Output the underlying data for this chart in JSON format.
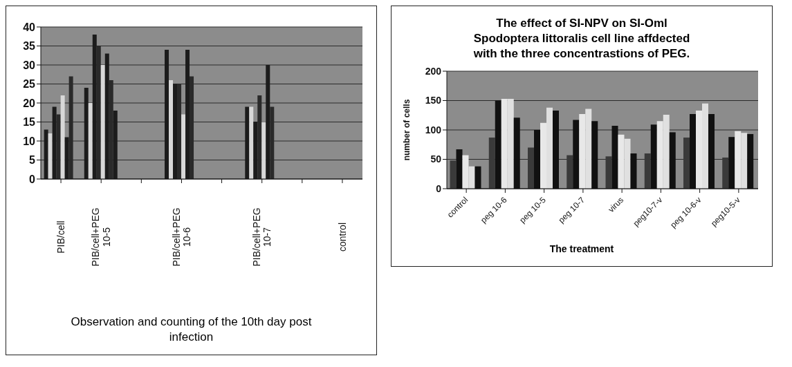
{
  "chart_data": [
    {
      "type": "bar",
      "xlabel": "Observation and counting of the 10th day post infection",
      "categories": [
        "PIB/cell",
        "PIB/cell+PEG 10-5",
        null,
        "PIB/cell+PEG 10-6",
        null,
        "PIB/cell+PEG 10-7",
        null,
        "control"
      ],
      "series": [
        {
          "color": "#1c1c1c",
          "values": [
            13,
            24,
            null,
            34,
            null,
            19,
            null,
            null
          ]
        },
        {
          "color": "#d8d8d8",
          "values": [
            12,
            20,
            null,
            26,
            null,
            19,
            null,
            null
          ]
        },
        {
          "color": "#1c1c1c",
          "values": [
            19,
            38,
            null,
            25,
            null,
            15,
            null,
            null
          ]
        },
        {
          "color": "#2a2a2a",
          "values": [
            17,
            35,
            null,
            25,
            null,
            22,
            null,
            null
          ]
        },
        {
          "color": "#d8d8d8",
          "values": [
            22,
            30,
            null,
            17,
            null,
            15,
            null,
            null
          ]
        },
        {
          "color": "#1c1c1c",
          "values": [
            11,
            33,
            null,
            34,
            null,
            30,
            null,
            null
          ]
        },
        {
          "color": "#2a2a2a",
          "values": [
            27,
            26,
            null,
            27,
            null,
            19,
            null,
            null
          ]
        },
        {
          "color": "#1c1c1c",
          "values": [
            null,
            18,
            null,
            null,
            null,
            null,
            null,
            null
          ]
        }
      ],
      "ylim": [
        0,
        40
      ],
      "yticks": [
        0,
        5,
        10,
        15,
        20,
        25,
        30,
        35,
        40
      ],
      "grid": "y"
    },
    {
      "type": "bar",
      "title": "The effect of SI-NPV on SI-Oml Spodoptera littoralis cell line affdected with the three concentrastions of PEG.",
      "xlabel": "The treatment",
      "ylabel": "number of cells",
      "categories": [
        "control",
        "peg 10-6",
        "peg 10-5",
        "peg 10-7",
        "virus",
        "peg10-7-v",
        "peg 10-6-v",
        "peg10-5-v"
      ],
      "series": [
        {
          "color": "#3a3a3a",
          "values": [
            48,
            87,
            70,
            57,
            55,
            60,
            87,
            53
          ]
        },
        {
          "color": "#111111",
          "values": [
            67,
            150,
            100,
            117,
            107,
            109,
            127,
            88
          ]
        },
        {
          "color": "#e8e8e8",
          "values": [
            57,
            153,
            112,
            127,
            92,
            115,
            133,
            98
          ]
        },
        {
          "color": "#e0e0e0",
          "values": [
            38,
            153,
            138,
            136,
            85,
            126,
            145,
            95
          ]
        },
        {
          "color": "#111111",
          "values": [
            38,
            121,
            133,
            115,
            60,
            96,
            127,
            93
          ]
        }
      ],
      "ylim": [
        0,
        200
      ],
      "yticks": [
        0,
        50,
        100,
        150,
        200
      ],
      "grid": "y"
    }
  ]
}
